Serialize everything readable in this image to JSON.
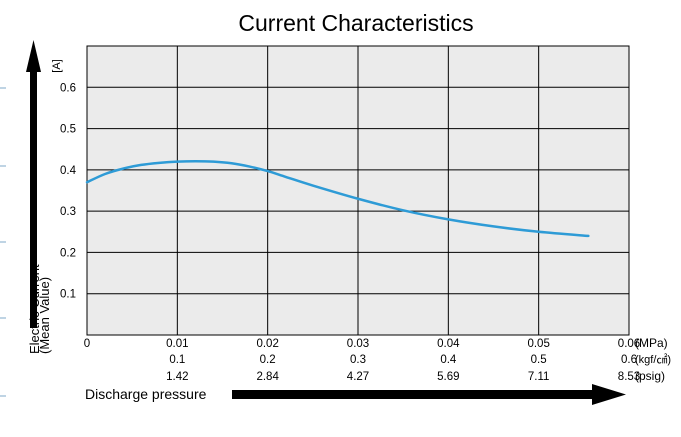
{
  "chart_data": {
    "type": "line",
    "title": "Current Characteristics",
    "ylabel_line1": "Electric Current",
    "ylabel_line2": "(Mean Value)",
    "y_unit": "[A]",
    "xlabel": "Discharge pressure",
    "ylim": [
      0,
      0.7
    ],
    "xlim": [
      0,
      0.06
    ],
    "grid": true,
    "line_color": "#2e9bd6",
    "plot_bg": "#ebebeb",
    "y_ticks": [
      {
        "v": 0.1,
        "label": "0.1"
      },
      {
        "v": 0.2,
        "label": "0.2"
      },
      {
        "v": 0.3,
        "label": "0.3"
      },
      {
        "v": 0.4,
        "label": "0.4"
      },
      {
        "v": 0.5,
        "label": "0.5"
      },
      {
        "v": 0.6,
        "label": "0.6"
      }
    ],
    "x_ticks": [
      {
        "v": 0,
        "mpa": "0",
        "kgf": "",
        "psig": ""
      },
      {
        "v": 0.01,
        "mpa": "0.01",
        "kgf": "0.1",
        "psig": "1.42"
      },
      {
        "v": 0.02,
        "mpa": "0.02",
        "kgf": "0.2",
        "psig": "2.84"
      },
      {
        "v": 0.03,
        "mpa": "0.03",
        "kgf": "0.3",
        "psig": "4.27"
      },
      {
        "v": 0.04,
        "mpa": "0.04",
        "kgf": "0.4",
        "psig": "5.69"
      },
      {
        "v": 0.05,
        "mpa": "0.05",
        "kgf": "0.5",
        "psig": "7.11"
      },
      {
        "v": 0.06,
        "mpa": "0.06",
        "kgf": "0.6",
        "psig": "8.53"
      }
    ],
    "x_units": {
      "mpa": "(MPa)",
      "kgf": "(kgf/㎠)",
      "psig": "(psig)"
    },
    "series": [
      {
        "x": [
          0,
          0.002,
          0.004,
          0.006,
          0.008,
          0.01,
          0.012,
          0.014,
          0.016,
          0.018,
          0.02,
          0.022,
          0.025,
          0.03,
          0.035,
          0.04,
          0.045,
          0.05,
          0.0555
        ],
        "y": [
          0.37,
          0.39,
          0.403,
          0.412,
          0.417,
          0.42,
          0.421,
          0.42,
          0.416,
          0.408,
          0.397,
          0.383,
          0.362,
          0.33,
          0.302,
          0.28,
          0.263,
          0.25,
          0.24
        ]
      }
    ]
  }
}
